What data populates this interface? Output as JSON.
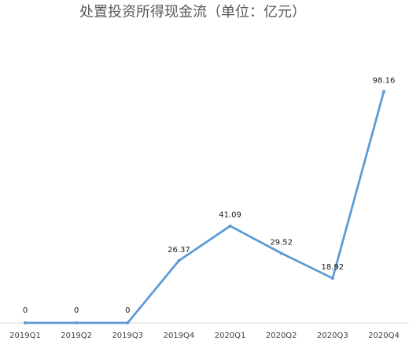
{
  "chart_data": {
    "type": "line",
    "title": "处置投资所得现金流（单位：亿元）",
    "xlabel": "",
    "ylabel": "",
    "categories": [
      "2019Q1",
      "2019Q2",
      "2019Q3",
      "2019Q4",
      "2020Q1",
      "2020Q2",
      "2020Q3",
      "2020Q4"
    ],
    "series": [
      {
        "values": [
          0,
          0,
          0,
          26.37,
          41.09,
          29.52,
          18.92,
          98.16
        ],
        "labels": [
          "0",
          "0",
          "0",
          "26.37",
          "41.09",
          "29.52",
          "18.92",
          "98.16"
        ]
      }
    ],
    "ylim": [
      0,
      100
    ],
    "grid": false,
    "line_color": "#5B9BD5",
    "axis_color": "#D9D9D9"
  }
}
